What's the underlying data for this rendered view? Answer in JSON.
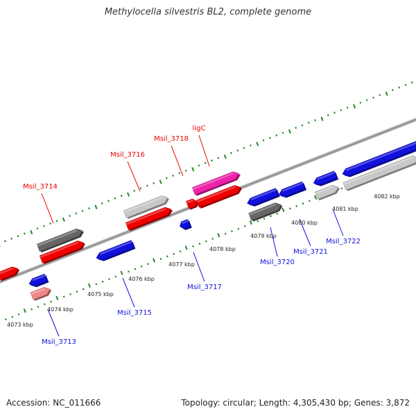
{
  "title": "Methylocella silvestris BL2, complete genome",
  "footer": {
    "accession": "Accession: NC_011666",
    "stats": "Topology: circular; Length: 4,305,430 bp; Genes: 3,872"
  },
  "colors": {
    "forward_strand": "#ee0000",
    "reverse_strand": "#1010dd",
    "highlight": "#ee22aa",
    "light_gray": "#c8c8c8",
    "dark_gray": "#666666",
    "pink": "#ee8888",
    "tick": "#228822",
    "backbone": "#999999"
  },
  "kbp_labels": [
    "4073 kbp",
    "4074 kbp",
    "4075 kbp",
    "4076 kbp",
    "4077 kbp",
    "4078 kbp",
    "4079 kbp",
    "4080 kbp",
    "4081 kbp",
    "4082 kbp"
  ],
  "gene_labels_top": [
    "Msil_3714",
    "Msil_3716",
    "Msil_3718",
    "ligC"
  ],
  "gene_labels_bottom": [
    "Msil_3713",
    "Msil_3715",
    "Msil_3717",
    "Msil_3720",
    "Msil_3721",
    "Msil_3722"
  ]
}
